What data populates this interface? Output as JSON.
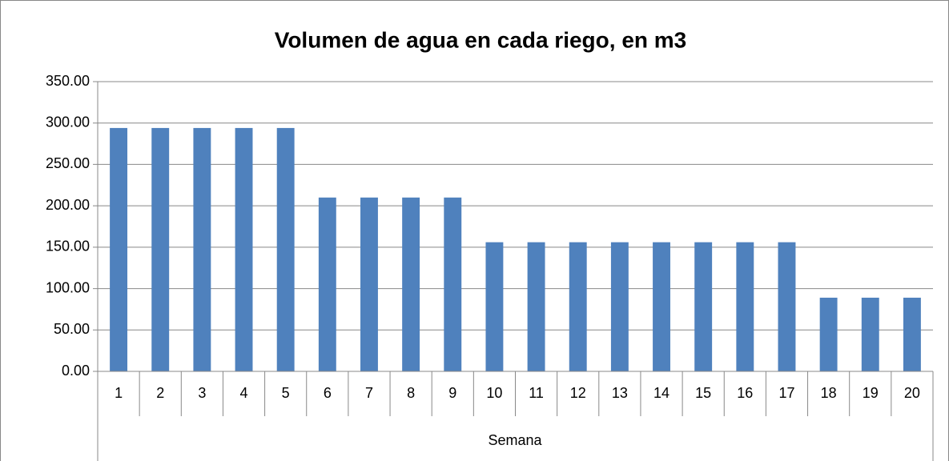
{
  "chart_data": {
    "type": "bar",
    "title": "Volumen de agua en cada riego, en m3",
    "x_label": "Semana",
    "categories": [
      "1",
      "2",
      "3",
      "4",
      "5",
      "6",
      "7",
      "8",
      "9",
      "10",
      "11",
      "12",
      "13",
      "14",
      "15",
      "16",
      "17",
      "18",
      "19",
      "20"
    ],
    "values": [
      294,
      294,
      294,
      294,
      294,
      210,
      210,
      210,
      210,
      156,
      156,
      156,
      156,
      156,
      156,
      156,
      156,
      89,
      89,
      89
    ],
    "color": "#4f81bd",
    "ylim": [
      0,
      350
    ],
    "yticks": [
      {
        "value": 0,
        "label": "0.00"
      },
      {
        "value": 50,
        "label": "50.00"
      },
      {
        "value": 100,
        "label": "100.00"
      },
      {
        "value": 150,
        "label": "150.00"
      },
      {
        "value": 200,
        "label": "200.00"
      },
      {
        "value": 250,
        "label": "250.00"
      },
      {
        "value": 300,
        "label": "300.00"
      },
      {
        "value": 350,
        "label": "350.00"
      }
    ],
    "grid": true
  }
}
